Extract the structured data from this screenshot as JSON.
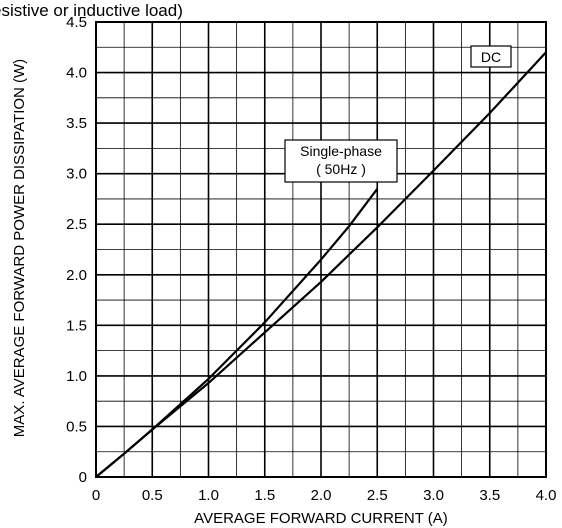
{
  "header_fragment": "esistive or inductive load)",
  "chart_data": {
    "type": "line",
    "xlabel": "AVERAGE FORWARD CURRENT (A)",
    "ylabel": "MAX. AVERAGE FORWARD POWER DISSIPATION (W)",
    "xlim": [
      0,
      4.0
    ],
    "ylim": [
      0,
      4.5
    ],
    "x_ticks": [
      "0",
      "0.5",
      "1.0",
      "1.5",
      "2.0",
      "2.5",
      "3.0",
      "3.5",
      "4.0"
    ],
    "y_ticks": [
      "0",
      "0.5",
      "1.0",
      "1.5",
      "2.0",
      "2.5",
      "3.0",
      "3.5",
      "4.0",
      "4.5"
    ],
    "grid": true,
    "series": [
      {
        "name": "DC",
        "x": [
          0,
          0.25,
          0.5,
          1.0,
          1.5,
          2.0,
          2.5,
          3.0,
          3.5,
          4.0
        ],
        "y": [
          0,
          0.23,
          0.47,
          0.93,
          1.43,
          1.93,
          2.47,
          3.03,
          3.6,
          4.2
        ]
      },
      {
        "name": "Single-phase ( 50Hz )",
        "x": [
          0,
          0.25,
          0.5,
          1.0,
          1.5,
          2.0,
          2.25,
          2.5
        ],
        "y": [
          0,
          0.23,
          0.47,
          0.97,
          1.53,
          2.15,
          2.48,
          2.85
        ]
      }
    ],
    "annotations": [
      {
        "lines": [
          "DC"
        ]
      },
      {
        "lines": [
          "Single-phase",
          "( 50Hz )"
        ]
      }
    ]
  }
}
